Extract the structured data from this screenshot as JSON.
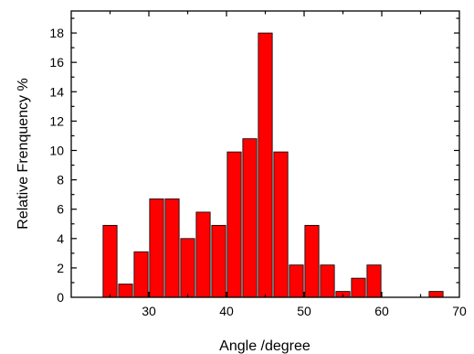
{
  "chart_data": {
    "type": "bar",
    "title": "",
    "xlabel": "Angle /degree",
    "ylabel": "Relative Frenquency %",
    "xlim": [
      20,
      70
    ],
    "ylim": [
      0,
      19.5
    ],
    "x_ticks": [
      30,
      40,
      50,
      60,
      70
    ],
    "y_ticks": [
      0,
      2,
      4,
      6,
      8,
      10,
      12,
      14,
      16,
      18
    ],
    "bar_width": 1.8,
    "bar_color": "#ff0000",
    "grid": false,
    "legend": "none",
    "x": [
      25,
      27,
      29,
      31,
      33,
      35,
      37,
      39,
      41,
      43,
      45,
      47,
      49,
      51,
      53,
      55,
      57,
      59,
      67
    ],
    "values": [
      4.9,
      0.9,
      3.1,
      6.7,
      6.7,
      4.0,
      5.8,
      4.9,
      9.9,
      10.8,
      18.0,
      9.9,
      2.2,
      4.9,
      2.2,
      0.4,
      1.3,
      2.2,
      0.4
    ]
  }
}
